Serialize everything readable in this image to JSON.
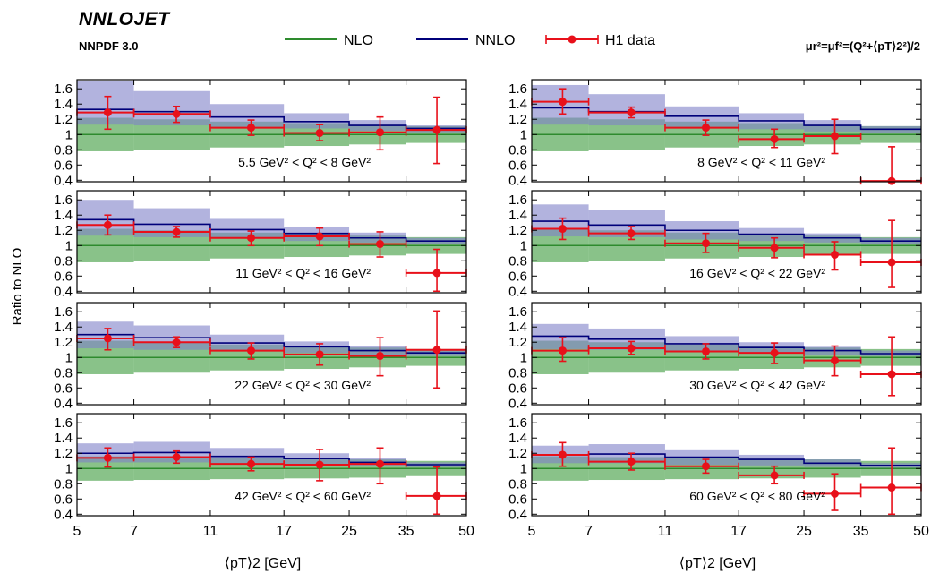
{
  "header": {
    "brand": "NNLOJET",
    "pdf_set": "NNPDF 3.0",
    "scale_mu_r": "μ",
    "scale_text": "μr²=μf²=(Q²+⟨pT⟩2²)/2"
  },
  "colors": {
    "nlo": "#2e8b2e",
    "nlo_band": "#7cbb7c",
    "nnlo": "#00007a",
    "nnlo_band": "#7f80c8",
    "data": "#e8101a"
  },
  "chart_data": {
    "type": "bar",
    "xlabel": "⟨pT⟩2  [GeV]",
    "ylabel": "Ratio to NLO",
    "x_scale": "log",
    "xlim": [
      5,
      50
    ],
    "ylim": [
      0.38,
      1.72
    ],
    "x_ticks": [
      "5",
      "7",
      "11",
      "17",
      "25",
      "35",
      "50"
    ],
    "x_tick_values": [
      5,
      7,
      11,
      17,
      25,
      35,
      50
    ],
    "y_ticks": [
      "0.4",
      "0.6",
      "0.8",
      "1",
      "1.2",
      "1.4",
      "1.6"
    ],
    "y_tick_values": [
      0.4,
      0.6,
      0.8,
      1,
      1.2,
      1.4,
      1.6
    ],
    "bin_edges": [
      5,
      7,
      11,
      17,
      25,
      35,
      50
    ],
    "legend": {
      "placement": "top",
      "entries": [
        "NLO",
        "NNLO",
        "H1 data"
      ]
    },
    "panels": [
      {
        "label": "5.5 GeV² < Q² < 8 GeV²",
        "nlo_band": [
          [
            0.78,
            1.22
          ],
          [
            0.8,
            1.2
          ],
          [
            0.83,
            1.17
          ],
          [
            0.85,
            1.15
          ],
          [
            0.87,
            1.13
          ],
          [
            0.89,
            1.11
          ]
        ],
        "nnlo": [
          1.33,
          1.3,
          1.23,
          1.17,
          1.12,
          1.08
        ],
        "nnlo_band": [
          [
            1.13,
            1.7
          ],
          [
            1.12,
            1.57
          ],
          [
            1.1,
            1.4
          ],
          [
            1.08,
            1.28
          ],
          [
            1.05,
            1.19
          ],
          [
            1.03,
            1.12
          ]
        ],
        "data_x": [
          6,
          9,
          14,
          21,
          30,
          42
        ],
        "data_y": [
          1.29,
          1.27,
          1.09,
          1.02,
          1.03,
          1.06
        ],
        "data_err": [
          [
            1.07,
            1.5
          ],
          [
            1.16,
            1.37
          ],
          [
            0.99,
            1.19
          ],
          [
            0.92,
            1.13
          ],
          [
            0.8,
            1.23
          ],
          [
            0.62,
            1.49
          ]
        ]
      },
      {
        "label": "8 GeV² < Q² < 11 GeV²",
        "nlo_band": [
          [
            0.78,
            1.22
          ],
          [
            0.8,
            1.2
          ],
          [
            0.83,
            1.17
          ],
          [
            0.85,
            1.15
          ],
          [
            0.87,
            1.13
          ],
          [
            0.89,
            1.11
          ]
        ],
        "nnlo": [
          1.35,
          1.3,
          1.24,
          1.18,
          1.12,
          1.07
        ],
        "nnlo_band": [
          [
            1.13,
            1.65
          ],
          [
            1.12,
            1.53
          ],
          [
            1.1,
            1.37
          ],
          [
            1.07,
            1.28
          ],
          [
            1.04,
            1.19
          ],
          [
            1.02,
            1.11
          ]
        ],
        "data_x": [
          6,
          9,
          14,
          21,
          30,
          42
        ],
        "data_y": [
          1.43,
          1.29,
          1.09,
          0.94,
          0.98,
          0.39
        ],
        "data_err": [
          [
            1.27,
            1.6
          ],
          [
            1.22,
            1.36
          ],
          [
            0.99,
            1.19
          ],
          [
            0.83,
            1.07
          ],
          [
            0.75,
            1.2
          ],
          [
            0.36,
            0.84
          ]
        ]
      },
      {
        "label": "11 GeV² < Q² < 16 GeV²",
        "nlo_band": [
          [
            0.78,
            1.22
          ],
          [
            0.8,
            1.2
          ],
          [
            0.83,
            1.17
          ],
          [
            0.85,
            1.15
          ],
          [
            0.87,
            1.13
          ],
          [
            0.89,
            1.11
          ]
        ],
        "nnlo": [
          1.34,
          1.28,
          1.21,
          1.16,
          1.1,
          1.06
        ],
        "nnlo_band": [
          [
            1.13,
            1.6
          ],
          [
            1.11,
            1.49
          ],
          [
            1.09,
            1.35
          ],
          [
            1.06,
            1.25
          ],
          [
            1.04,
            1.17
          ],
          [
            1.02,
            1.1
          ]
        ],
        "data_x": [
          6,
          9,
          14,
          21,
          30,
          42
        ],
        "data_y": [
          1.27,
          1.18,
          1.1,
          1.12,
          1.02,
          0.64
        ],
        "data_err": [
          [
            1.14,
            1.4
          ],
          [
            1.11,
            1.25
          ],
          [
            1.0,
            1.19
          ],
          [
            1.0,
            1.23
          ],
          [
            0.85,
            1.18
          ],
          [
            0.4,
            0.95
          ]
        ]
      },
      {
        "label": "16 GeV² < Q² < 22 GeV²",
        "nlo_band": [
          [
            0.78,
            1.22
          ],
          [
            0.8,
            1.2
          ],
          [
            0.83,
            1.17
          ],
          [
            0.85,
            1.15
          ],
          [
            0.87,
            1.13
          ],
          [
            0.89,
            1.11
          ]
        ],
        "nnlo": [
          1.32,
          1.27,
          1.2,
          1.15,
          1.1,
          1.06
        ],
        "nnlo_band": [
          [
            1.12,
            1.54
          ],
          [
            1.11,
            1.47
          ],
          [
            1.08,
            1.32
          ],
          [
            1.06,
            1.23
          ],
          [
            1.04,
            1.16
          ],
          [
            1.02,
            1.1
          ]
        ],
        "data_x": [
          6,
          9,
          14,
          21,
          30,
          42
        ],
        "data_y": [
          1.22,
          1.16,
          1.03,
          0.97,
          0.88,
          0.78
        ],
        "data_err": [
          [
            1.08,
            1.36
          ],
          [
            1.08,
            1.25
          ],
          [
            0.91,
            1.16
          ],
          [
            0.84,
            1.1
          ],
          [
            0.68,
            1.05
          ],
          [
            0.45,
            1.33
          ]
        ]
      },
      {
        "label": "22 GeV² < Q² < 30 GeV²",
        "nlo_band": [
          [
            0.78,
            1.22
          ],
          [
            0.8,
            1.2
          ],
          [
            0.83,
            1.17
          ],
          [
            0.85,
            1.15
          ],
          [
            0.87,
            1.13
          ],
          [
            0.89,
            1.11
          ]
        ],
        "nnlo": [
          1.3,
          1.26,
          1.19,
          1.14,
          1.09,
          1.06
        ],
        "nnlo_band": [
          [
            1.12,
            1.47
          ],
          [
            1.1,
            1.42
          ],
          [
            1.08,
            1.3
          ],
          [
            1.06,
            1.21
          ],
          [
            1.03,
            1.15
          ],
          [
            1.02,
            1.09
          ]
        ],
        "data_x": [
          6,
          9,
          14,
          21,
          30,
          42
        ],
        "data_y": [
          1.25,
          1.2,
          1.09,
          1.04,
          1.02,
          1.1
        ],
        "data_err": [
          [
            1.1,
            1.38
          ],
          [
            1.13,
            1.27
          ],
          [
            0.98,
            1.19
          ],
          [
            0.9,
            1.18
          ],
          [
            0.76,
            1.26
          ],
          [
            0.6,
            1.61
          ]
        ]
      },
      {
        "label": "30 GeV² < Q² < 42 GeV²",
        "nlo_band": [
          [
            0.78,
            1.22
          ],
          [
            0.8,
            1.2
          ],
          [
            0.83,
            1.17
          ],
          [
            0.85,
            1.15
          ],
          [
            0.87,
            1.13
          ],
          [
            0.89,
            1.11
          ]
        ],
        "nnlo": [
          1.28,
          1.24,
          1.18,
          1.13,
          1.09,
          1.05
        ],
        "nnlo_band": [
          [
            1.11,
            1.44
          ],
          [
            1.1,
            1.38
          ],
          [
            1.08,
            1.28
          ],
          [
            1.06,
            1.2
          ],
          [
            1.03,
            1.14
          ],
          [
            1.02,
            1.09
          ]
        ],
        "data_x": [
          6,
          9,
          14,
          21,
          30,
          42
        ],
        "data_y": [
          1.09,
          1.12,
          1.08,
          1.06,
          0.96,
          0.78
        ],
        "data_err": [
          [
            0.95,
            1.26
          ],
          [
            1.04,
            1.21
          ],
          [
            0.98,
            1.18
          ],
          [
            0.92,
            1.19
          ],
          [
            0.76,
            1.15
          ],
          [
            0.5,
            1.27
          ]
        ]
      },
      {
        "label": "42 GeV² < Q² < 60 GeV²",
        "nlo_band": [
          [
            0.84,
            1.16
          ],
          [
            0.85,
            1.15
          ],
          [
            0.86,
            1.14
          ],
          [
            0.87,
            1.13
          ],
          [
            0.88,
            1.12
          ],
          [
            0.9,
            1.1
          ]
        ],
        "nnlo": [
          1.2,
          1.21,
          1.16,
          1.13,
          1.08,
          1.05
        ],
        "nnlo_band": [
          [
            1.08,
            1.33
          ],
          [
            1.08,
            1.35
          ],
          [
            1.06,
            1.27
          ],
          [
            1.05,
            1.2
          ],
          [
            1.03,
            1.14
          ],
          [
            1.02,
            1.08
          ]
        ],
        "data_x": [
          6,
          9,
          14,
          21,
          30,
          42
        ],
        "data_y": [
          1.14,
          1.15,
          1.06,
          1.05,
          1.06,
          0.64
        ],
        "data_err": [
          [
            1.02,
            1.27
          ],
          [
            1.07,
            1.23
          ],
          [
            0.97,
            1.15
          ],
          [
            0.84,
            1.25
          ],
          [
            0.8,
            1.27
          ],
          [
            0.4,
            1.02
          ]
        ]
      },
      {
        "label": "60 GeV² < Q² < 80 GeV²",
        "nlo_band": [
          [
            0.84,
            1.16
          ],
          [
            0.85,
            1.15
          ],
          [
            0.86,
            1.14
          ],
          [
            0.87,
            1.13
          ],
          [
            0.88,
            1.12
          ],
          [
            0.9,
            1.1
          ]
        ],
        "nnlo": [
          1.18,
          1.19,
          1.15,
          1.12,
          1.07,
          1.04
        ],
        "nnlo_band": [
          [
            1.07,
            1.3
          ],
          [
            1.07,
            1.32
          ],
          [
            1.05,
            1.24
          ],
          [
            1.04,
            1.18
          ],
          [
            1.02,
            1.12
          ],
          [
            1.01,
            1.07
          ]
        ],
        "data_x": [
          6,
          9,
          14,
          21,
          30,
          42
        ],
        "data_y": [
          1.18,
          1.09,
          1.03,
          0.91,
          0.67,
          0.75
        ],
        "data_err": [
          [
            1.03,
            1.34
          ],
          [
            0.98,
            1.2
          ],
          [
            0.94,
            1.12
          ],
          [
            0.8,
            1.03
          ],
          [
            0.45,
            0.93
          ],
          [
            0.4,
            1.27
          ]
        ]
      }
    ]
  }
}
